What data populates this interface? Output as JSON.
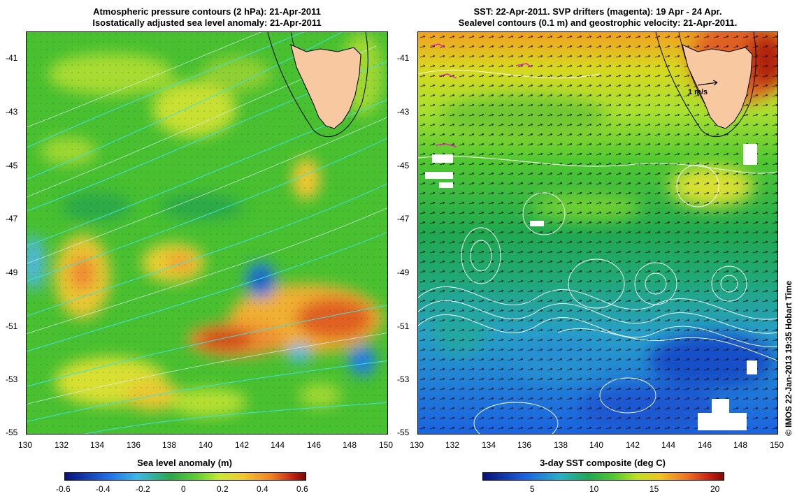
{
  "left_panel": {
    "title_line1": "Atmospheric pressure contours (2 hPa): 21-Apr-2011",
    "title_line2": "Isostatically adjusted sea level anomaly: 21-Apr-2011",
    "colorbar_title": "Sea level anomaly (m)",
    "colorbar_labels": [
      "-0.6",
      "-0.4",
      "-0.2",
      "0",
      "0.2",
      "0.4",
      "0.6"
    ]
  },
  "right_panel": {
    "title_line1": "SST: 22-Apr-2011. SVP drifters (magenta): 19 Apr - 24 Apr.",
    "title_line2": "Sealevel contours (0.1 m) and geostrophic velocity: 21-Apr-2011.",
    "scale_arrow_label": "1 m/s",
    "colorbar_title": "3-day SST composite (deg C)",
    "colorbar_labels": [
      "5",
      "10",
      "15",
      "20"
    ]
  },
  "axes": {
    "lat_labels": [
      "-41",
      "-43",
      "-45",
      "-47",
      "-49",
      "-51",
      "-53",
      "-55"
    ],
    "lon_labels": [
      "130",
      "132",
      "134",
      "136",
      "138",
      "140",
      "142",
      "144",
      "146",
      "148",
      "150"
    ]
  },
  "credit": "© IMOS 22-Jan-2013 19:35 Hobart Time",
  "colors": {
    "land": "#f8c8a0",
    "sla_ramp": [
      "#08107a",
      "#1d6ee8",
      "#3ab8e8",
      "#2aa84a",
      "#60d030",
      "#c8e830",
      "#f0c830",
      "#f08020",
      "#c02010",
      "#7a0808"
    ],
    "sst_ramp": [
      "#08107a",
      "#1a64e0",
      "#28b0c8",
      "#20a850",
      "#50c830",
      "#c0e020",
      "#f0c020",
      "#f07020",
      "#c82010",
      "#800808"
    ],
    "pressure_contours": "#40e0e0",
    "sealevel_contours": "#ffffff",
    "drifters": "#e020c0"
  }
}
